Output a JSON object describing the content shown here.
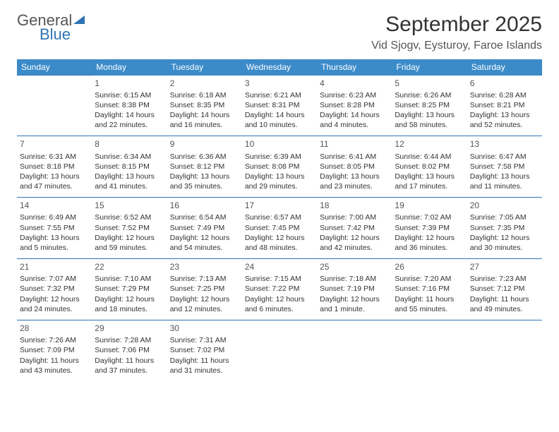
{
  "logo": {
    "text1": "General",
    "text2": "Blue"
  },
  "title": "September 2025",
  "location": "Vid Sjogv, Eysturoy, Faroe Islands",
  "colors": {
    "header_bg": "#3b8bc9",
    "header_text": "#ffffff",
    "border": "#2e74b5",
    "text": "#333333",
    "text_muted": "#555555",
    "logo_blue": "#2e74b5",
    "background": "#ffffff"
  },
  "typography": {
    "title_fontsize": 30,
    "location_fontsize": 16,
    "th_fontsize": 12,
    "cell_fontsize": 10.5,
    "daynum_fontsize": 12
  },
  "day_headers": [
    "Sunday",
    "Monday",
    "Tuesday",
    "Wednesday",
    "Thursday",
    "Friday",
    "Saturday"
  ],
  "weeks": [
    [
      null,
      {
        "num": "1",
        "sunrise": "Sunrise: 6:15 AM",
        "sunset": "Sunset: 8:38 PM",
        "daylight": "Daylight: 14 hours and 22 minutes."
      },
      {
        "num": "2",
        "sunrise": "Sunrise: 6:18 AM",
        "sunset": "Sunset: 8:35 PM",
        "daylight": "Daylight: 14 hours and 16 minutes."
      },
      {
        "num": "3",
        "sunrise": "Sunrise: 6:21 AM",
        "sunset": "Sunset: 8:31 PM",
        "daylight": "Daylight: 14 hours and 10 minutes."
      },
      {
        "num": "4",
        "sunrise": "Sunrise: 6:23 AM",
        "sunset": "Sunset: 8:28 PM",
        "daylight": "Daylight: 14 hours and 4 minutes."
      },
      {
        "num": "5",
        "sunrise": "Sunrise: 6:26 AM",
        "sunset": "Sunset: 8:25 PM",
        "daylight": "Daylight: 13 hours and 58 minutes."
      },
      {
        "num": "6",
        "sunrise": "Sunrise: 6:28 AM",
        "sunset": "Sunset: 8:21 PM",
        "daylight": "Daylight: 13 hours and 52 minutes."
      }
    ],
    [
      {
        "num": "7",
        "sunrise": "Sunrise: 6:31 AM",
        "sunset": "Sunset: 8:18 PM",
        "daylight": "Daylight: 13 hours and 47 minutes."
      },
      {
        "num": "8",
        "sunrise": "Sunrise: 6:34 AM",
        "sunset": "Sunset: 8:15 PM",
        "daylight": "Daylight: 13 hours and 41 minutes."
      },
      {
        "num": "9",
        "sunrise": "Sunrise: 6:36 AM",
        "sunset": "Sunset: 8:12 PM",
        "daylight": "Daylight: 13 hours and 35 minutes."
      },
      {
        "num": "10",
        "sunrise": "Sunrise: 6:39 AM",
        "sunset": "Sunset: 8:08 PM",
        "daylight": "Daylight: 13 hours and 29 minutes."
      },
      {
        "num": "11",
        "sunrise": "Sunrise: 6:41 AM",
        "sunset": "Sunset: 8:05 PM",
        "daylight": "Daylight: 13 hours and 23 minutes."
      },
      {
        "num": "12",
        "sunrise": "Sunrise: 6:44 AM",
        "sunset": "Sunset: 8:02 PM",
        "daylight": "Daylight: 13 hours and 17 minutes."
      },
      {
        "num": "13",
        "sunrise": "Sunrise: 6:47 AM",
        "sunset": "Sunset: 7:58 PM",
        "daylight": "Daylight: 13 hours and 11 minutes."
      }
    ],
    [
      {
        "num": "14",
        "sunrise": "Sunrise: 6:49 AM",
        "sunset": "Sunset: 7:55 PM",
        "daylight": "Daylight: 13 hours and 5 minutes."
      },
      {
        "num": "15",
        "sunrise": "Sunrise: 6:52 AM",
        "sunset": "Sunset: 7:52 PM",
        "daylight": "Daylight: 12 hours and 59 minutes."
      },
      {
        "num": "16",
        "sunrise": "Sunrise: 6:54 AM",
        "sunset": "Sunset: 7:49 PM",
        "daylight": "Daylight: 12 hours and 54 minutes."
      },
      {
        "num": "17",
        "sunrise": "Sunrise: 6:57 AM",
        "sunset": "Sunset: 7:45 PM",
        "daylight": "Daylight: 12 hours and 48 minutes."
      },
      {
        "num": "18",
        "sunrise": "Sunrise: 7:00 AM",
        "sunset": "Sunset: 7:42 PM",
        "daylight": "Daylight: 12 hours and 42 minutes."
      },
      {
        "num": "19",
        "sunrise": "Sunrise: 7:02 AM",
        "sunset": "Sunset: 7:39 PM",
        "daylight": "Daylight: 12 hours and 36 minutes."
      },
      {
        "num": "20",
        "sunrise": "Sunrise: 7:05 AM",
        "sunset": "Sunset: 7:35 PM",
        "daylight": "Daylight: 12 hours and 30 minutes."
      }
    ],
    [
      {
        "num": "21",
        "sunrise": "Sunrise: 7:07 AM",
        "sunset": "Sunset: 7:32 PM",
        "daylight": "Daylight: 12 hours and 24 minutes."
      },
      {
        "num": "22",
        "sunrise": "Sunrise: 7:10 AM",
        "sunset": "Sunset: 7:29 PM",
        "daylight": "Daylight: 12 hours and 18 minutes."
      },
      {
        "num": "23",
        "sunrise": "Sunrise: 7:13 AM",
        "sunset": "Sunset: 7:25 PM",
        "daylight": "Daylight: 12 hours and 12 minutes."
      },
      {
        "num": "24",
        "sunrise": "Sunrise: 7:15 AM",
        "sunset": "Sunset: 7:22 PM",
        "daylight": "Daylight: 12 hours and 6 minutes."
      },
      {
        "num": "25",
        "sunrise": "Sunrise: 7:18 AM",
        "sunset": "Sunset: 7:19 PM",
        "daylight": "Daylight: 12 hours and 1 minute."
      },
      {
        "num": "26",
        "sunrise": "Sunrise: 7:20 AM",
        "sunset": "Sunset: 7:16 PM",
        "daylight": "Daylight: 11 hours and 55 minutes."
      },
      {
        "num": "27",
        "sunrise": "Sunrise: 7:23 AM",
        "sunset": "Sunset: 7:12 PM",
        "daylight": "Daylight: 11 hours and 49 minutes."
      }
    ],
    [
      {
        "num": "28",
        "sunrise": "Sunrise: 7:26 AM",
        "sunset": "Sunset: 7:09 PM",
        "daylight": "Daylight: 11 hours and 43 minutes."
      },
      {
        "num": "29",
        "sunrise": "Sunrise: 7:28 AM",
        "sunset": "Sunset: 7:06 PM",
        "daylight": "Daylight: 11 hours and 37 minutes."
      },
      {
        "num": "30",
        "sunrise": "Sunrise: 7:31 AM",
        "sunset": "Sunset: 7:02 PM",
        "daylight": "Daylight: 11 hours and 31 minutes."
      },
      null,
      null,
      null,
      null
    ]
  ]
}
